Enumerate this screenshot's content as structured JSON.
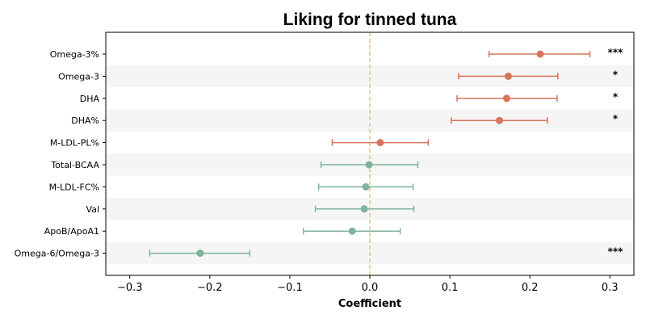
{
  "chart_data": {
    "type": "scatter",
    "title": "Liking for tinned tuna",
    "xlabel": "Coefficient",
    "ylabel": "",
    "xlim": [
      -0.33,
      0.33
    ],
    "xticks": [
      -0.3,
      -0.2,
      -0.1,
      0.0,
      0.1,
      0.2,
      0.3
    ],
    "xtick_labels": [
      "−0.3",
      "−0.2",
      "−0.1",
      "0.0",
      "0.1",
      "0.2",
      "0.3"
    ],
    "reference_line": 0.0,
    "grid": false,
    "row_banding": true,
    "series": [
      {
        "label": "Omega-3%",
        "estimate": 0.213,
        "ci_low": 0.149,
        "ci_high": 0.275,
        "significance": "***"
      },
      {
        "label": "Omega-3",
        "estimate": 0.173,
        "ci_low": 0.111,
        "ci_high": 0.235,
        "significance": "*"
      },
      {
        "label": "DHA",
        "estimate": 0.171,
        "ci_low": 0.109,
        "ci_high": 0.234,
        "significance": "*"
      },
      {
        "label": "DHA%",
        "estimate": 0.162,
        "ci_low": 0.102,
        "ci_high": 0.222,
        "significance": "*"
      },
      {
        "label": "M-LDL-PL%",
        "estimate": 0.013,
        "ci_low": -0.047,
        "ci_high": 0.073,
        "significance": ""
      },
      {
        "label": "Total-BCAA",
        "estimate": -0.001,
        "ci_low": -0.061,
        "ci_high": 0.06,
        "significance": ""
      },
      {
        "label": "M-LDL-FC%",
        "estimate": -0.005,
        "ci_low": -0.064,
        "ci_high": 0.054,
        "significance": ""
      },
      {
        "label": "Val",
        "estimate": -0.007,
        "ci_low": -0.068,
        "ci_high": 0.055,
        "significance": ""
      },
      {
        "label": "ApoB/ApoA1",
        "estimate": -0.022,
        "ci_low": -0.083,
        "ci_high": 0.038,
        "significance": ""
      },
      {
        "label": "Omega-6/Omega-3",
        "estimate": -0.212,
        "ci_low": -0.275,
        "ci_high": -0.15,
        "significance": "***"
      }
    ],
    "colors": {
      "positive": "#d9735a",
      "negative": "#7fb39a",
      "reference_line": "#f0c48a",
      "band": "#f5f5f5"
    }
  }
}
